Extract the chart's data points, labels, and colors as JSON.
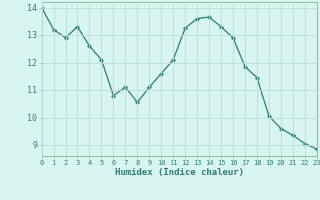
{
  "x": [
    0,
    1,
    2,
    3,
    4,
    5,
    6,
    7,
    8,
    9,
    10,
    11,
    12,
    13,
    14,
    15,
    16,
    17,
    18,
    19,
    20,
    21,
    22,
    23
  ],
  "y": [
    14.0,
    13.2,
    12.9,
    13.3,
    12.6,
    12.1,
    10.8,
    11.1,
    10.55,
    11.1,
    11.6,
    12.1,
    13.25,
    13.6,
    13.65,
    13.3,
    12.9,
    11.85,
    11.45,
    10.05,
    9.6,
    9.35,
    9.05,
    8.85
  ],
  "xlim": [
    0,
    23
  ],
  "ylim": [
    8.6,
    14.2
  ],
  "yticks": [
    9,
    10,
    11,
    12,
    13,
    14
  ],
  "xticks": [
    0,
    1,
    2,
    3,
    4,
    5,
    6,
    7,
    8,
    9,
    10,
    11,
    12,
    13,
    14,
    15,
    16,
    17,
    18,
    19,
    20,
    21,
    22,
    23
  ],
  "xlabel": "Humidex (Indice chaleur)",
  "line_color": "#2e7d6e",
  "marker_color": "#2e7d6e",
  "bg_color": "#d8f5f0",
  "grid_color": "#b8ddd8",
  "spine_color": "#8abaaa"
}
